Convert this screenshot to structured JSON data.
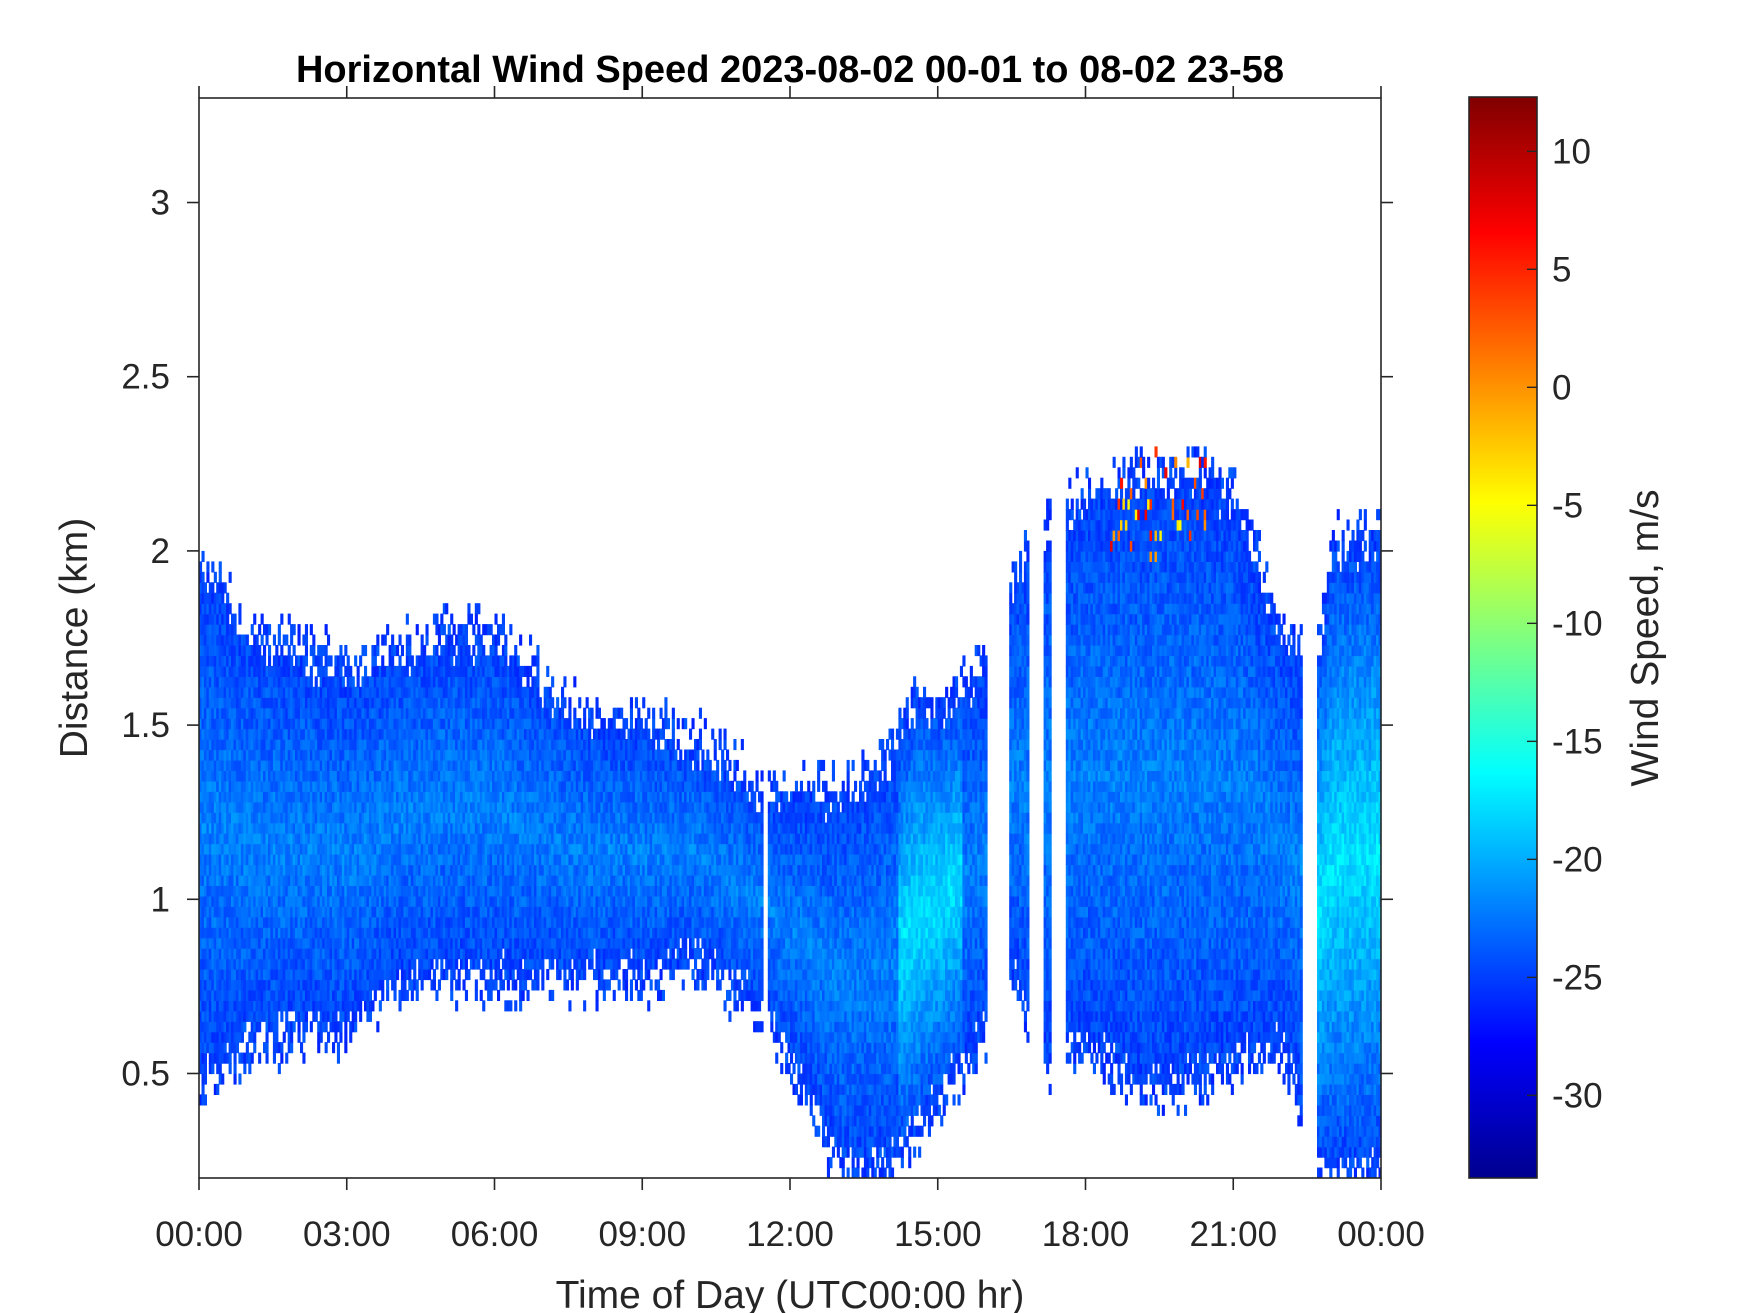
{
  "chart_data": {
    "type": "heatmap",
    "title": "Horizontal Wind Speed 2023-08-02 00-01 to 08-02 23-58",
    "xlabel": "Time of Day (UTC00:00 hr)",
    "ylabel": "Distance (km)",
    "x_ticks": [
      "00:00",
      "03:00",
      "06:00",
      "09:00",
      "12:00",
      "15:00",
      "18:00",
      "21:00",
      "00:00"
    ],
    "x_tick_hours": [
      0,
      3,
      6,
      9,
      12,
      15,
      18,
      21,
      24
    ],
    "xlim_hours": [
      0,
      24
    ],
    "y_ticks": [
      "0.5",
      "1",
      "1.5",
      "2",
      "2.5",
      "3"
    ],
    "y_tick_values": [
      0.5,
      1,
      1.5,
      2,
      2.5,
      3
    ],
    "ylim": [
      0.2,
      3.3
    ],
    "grid": false,
    "colorbar": {
      "label": "Wind Speed, m/s",
      "ticks": [
        "10",
        "5",
        "0",
        "-5",
        "-10",
        "-15",
        "-20",
        "-25",
        "-30"
      ],
      "tick_values": [
        10,
        5,
        0,
        -5,
        -10,
        -15,
        -20,
        -25,
        -30
      ],
      "range": [
        -33.5,
        12.3
      ],
      "colormap": "jet"
    },
    "coverage": {
      "description_hours_vs_height_km": "lower and upper edges of valid data by time",
      "hours": [
        0,
        1,
        2,
        3,
        4,
        5,
        6,
        7,
        8,
        9,
        10,
        11,
        11.5,
        12,
        13,
        14,
        14.5,
        15,
        15.5,
        16,
        16.5,
        17,
        17.5,
        18,
        19,
        20,
        21,
        22,
        22.7,
        23,
        24
      ],
      "lower_km": [
        0.45,
        0.55,
        0.6,
        0.6,
        0.75,
        0.75,
        0.75,
        0.75,
        0.75,
        0.75,
        0.8,
        0.7,
        0.65,
        0.5,
        0.2,
        0.2,
        0.3,
        0.4,
        0.5,
        0.6,
        0.75,
        0.55,
        0.5,
        0.55,
        0.45,
        0.45,
        0.5,
        0.55,
        0.2,
        0.2,
        0.2
      ],
      "upper_km": [
        1.95,
        1.75,
        1.7,
        1.65,
        1.7,
        1.75,
        1.75,
        1.6,
        1.5,
        1.5,
        1.45,
        1.35,
        1.3,
        1.3,
        1.3,
        1.4,
        1.55,
        1.55,
        1.6,
        1.65,
        1.9,
        2.05,
        2.1,
        2.15,
        2.2,
        2.22,
        2.15,
        1.75,
        1.7,
        2.0,
        2.05
      ]
    },
    "gaps_hours": [
      [
        11.45,
        11.55
      ],
      [
        16.0,
        16.45
      ],
      [
        16.85,
        17.15
      ],
      [
        17.3,
        17.6
      ],
      [
        22.4,
        22.7
      ]
    ],
    "wind_speed_m_s": {
      "typical_core": -22,
      "typical_edges": -25,
      "strongest_light_band": -17,
      "isolated_max": 8
    }
  }
}
